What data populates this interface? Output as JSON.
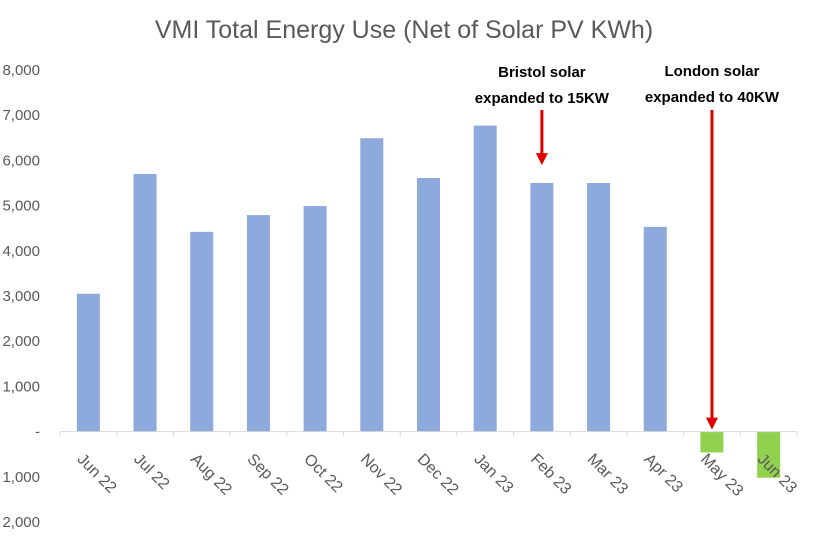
{
  "chart_data": {
    "type": "bar",
    "title": "VMI Total Energy Use (Net of Solar PV KWh)",
    "categories": [
      "Jun 22",
      "Jul 22",
      "Aug 22",
      "Sep 22",
      "Oct 22",
      "Nov 22",
      "Dec 22",
      "Jan 23",
      "Feb 23",
      "Mar 23",
      "Apr 23",
      "May 23",
      "Jun 23"
    ],
    "values": [
      3050,
      5700,
      4420,
      4790,
      4990,
      6490,
      5610,
      6770,
      5500,
      5500,
      4530,
      -460,
      -1020
    ],
    "positive_color": "#8EA9DB",
    "negative_color": "#92D050",
    "ylim": [
      -2000,
      8000
    ],
    "y_ticks": [
      -2000,
      -1000,
      0,
      1000,
      2000,
      3000,
      4000,
      5000,
      6000,
      7000,
      8000
    ],
    "y_tick_labels": [
      "2,000",
      "1,000",
      "-",
      "1,000",
      "2,000",
      "3,000",
      "4,000",
      "5,000",
      "6,000",
      "7,000",
      "8,000"
    ],
    "grid": false,
    "annotations": [
      {
        "lines": [
          "Bristol solar",
          "expanded to 15KW"
        ],
        "category": "Feb 23",
        "arrow_to_value": 5850,
        "arrow_color": "#E00000"
      },
      {
        "lines": [
          "London solar",
          "expanded to 40KW"
        ],
        "category": "May 23",
        "arrow_to_value": 0,
        "arrow_color": "#E00000"
      }
    ]
  }
}
